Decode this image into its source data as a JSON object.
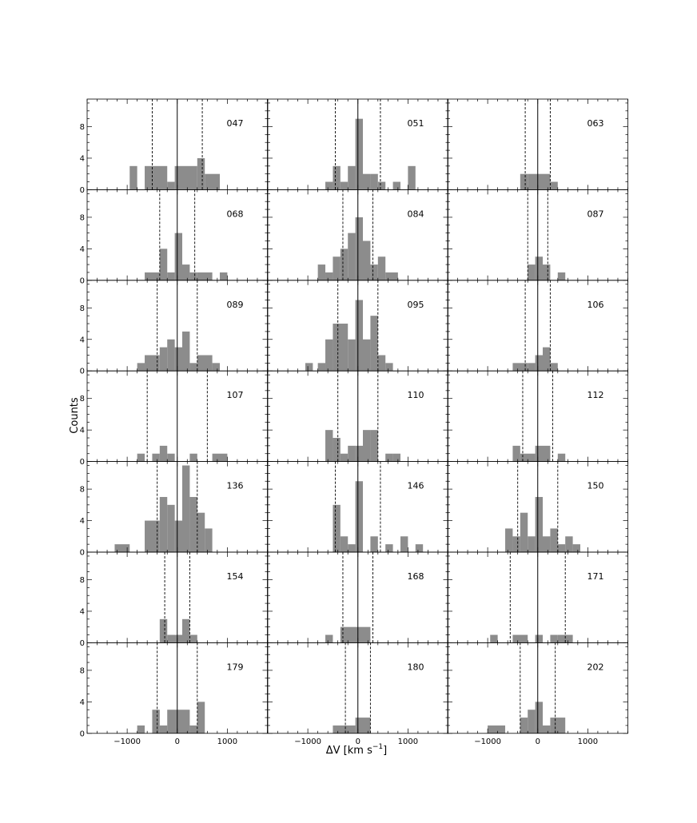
{
  "figure": {
    "xlabel": "ΔV [km s",
    "xlabel_sup": "−1",
    "xlabel_close": "]",
    "ylabel": "Counts"
  },
  "chart_data": {
    "type": "histogram-grid",
    "xlim": [
      -1800,
      1800
    ],
    "ylim": [
      0,
      11.5
    ],
    "x_ticks_labeled": [
      -1000,
      0,
      1000
    ],
    "x_tick_labels": [
      "−1000",
      "0",
      "1000"
    ],
    "y_ticks_labeled": [
      0,
      4,
      8
    ],
    "y_tick_labels": [
      "0",
      "4",
      "8"
    ],
    "bar_color": "#8c8c8c",
    "panels": [
      {
        "label": "047",
        "bins": [
          [
            -950,
            -800,
            3
          ],
          [
            -650,
            -200,
            3
          ],
          [
            -200,
            -50,
            1
          ],
          [
            -50,
            400,
            3
          ],
          [
            400,
            550,
            4
          ],
          [
            550,
            850,
            2
          ]
        ],
        "center_line": {
          "x": 0,
          "style": "solid"
        },
        "dashed": [
          -500,
          500
        ]
      },
      {
        "label": "051",
        "bins": [
          [
            -650,
            -500,
            1
          ],
          [
            -500,
            -350,
            3
          ],
          [
            -350,
            -200,
            1
          ],
          [
            -200,
            -50,
            3
          ],
          [
            -50,
            100,
            9
          ],
          [
            100,
            250,
            2
          ],
          [
            250,
            400,
            2
          ],
          [
            400,
            550,
            1
          ],
          [
            700,
            850,
            1
          ],
          [
            1000,
            1150,
            3
          ]
        ],
        "center_line": {
          "x": 0,
          "style": "solid"
        },
        "dashed": [
          -450,
          450
        ]
      },
      {
        "label": "063",
        "bins": [
          [
            -350,
            -200,
            2
          ],
          [
            -200,
            250,
            2
          ],
          [
            250,
            400,
            1
          ]
        ],
        "center_line": {
          "x": 0,
          "style": "solid"
        },
        "dashed": [
          -250,
          250
        ]
      },
      {
        "label": "068",
        "bins": [
          [
            -650,
            -350,
            1
          ],
          [
            -350,
            -200,
            4
          ],
          [
            -200,
            -50,
            1
          ],
          [
            -50,
            100,
            6
          ],
          [
            100,
            250,
            2
          ],
          [
            250,
            400,
            1
          ],
          [
            400,
            700,
            1
          ],
          [
            850,
            1000,
            1
          ]
        ],
        "center_line": {
          "x": 0,
          "style": "solid"
        },
        "dashed": [
          -350,
          350
        ]
      },
      {
        "label": "084",
        "bins": [
          [
            -800,
            -650,
            2
          ],
          [
            -650,
            -500,
            1
          ],
          [
            -500,
            -350,
            3
          ],
          [
            -350,
            -200,
            4
          ],
          [
            -200,
            -50,
            6
          ],
          [
            -50,
            100,
            8
          ],
          [
            100,
            250,
            5
          ],
          [
            250,
            400,
            2
          ],
          [
            400,
            550,
            3
          ],
          [
            550,
            800,
            1
          ]
        ],
        "center_line": {
          "x": 0,
          "style": "solid"
        },
        "dashed": [
          -300,
          300
        ]
      },
      {
        "label": "087",
        "bins": [
          [
            -200,
            -50,
            2
          ],
          [
            -50,
            100,
            3
          ],
          [
            100,
            250,
            2
          ],
          [
            400,
            550,
            1
          ]
        ],
        "center_line": {
          "x": 0,
          "style": "solid"
        },
        "dashed": [
          -200,
          200
        ]
      },
      {
        "label": "089",
        "bins": [
          [
            -800,
            -650,
            1
          ],
          [
            -650,
            -350,
            2
          ],
          [
            -350,
            -200,
            3
          ],
          [
            -200,
            -50,
            4
          ],
          [
            -50,
            100,
            3
          ],
          [
            100,
            250,
            5
          ],
          [
            250,
            400,
            1
          ],
          [
            400,
            700,
            2
          ],
          [
            700,
            850,
            1
          ]
        ],
        "center_line": {
          "x": 0,
          "style": "solid"
        },
        "dashed": [
          -400,
          400
        ]
      },
      {
        "label": "095",
        "bins": [
          [
            -1050,
            -900,
            1
          ],
          [
            -800,
            -650,
            1
          ],
          [
            -650,
            -500,
            4
          ],
          [
            -500,
            -200,
            6
          ],
          [
            -200,
            -50,
            4
          ],
          [
            -50,
            100,
            9
          ],
          [
            100,
            250,
            4
          ],
          [
            250,
            400,
            7
          ],
          [
            400,
            550,
            2
          ],
          [
            550,
            700,
            1
          ]
        ],
        "center_line": {
          "x": 0,
          "style": "solid"
        },
        "dashed": [
          -400,
          400
        ]
      },
      {
        "label": "106",
        "bins": [
          [
            -500,
            -200,
            1
          ],
          [
            -200,
            -50,
            1
          ],
          [
            -50,
            100,
            2
          ],
          [
            100,
            250,
            3
          ],
          [
            250,
            400,
            1
          ]
        ],
        "center_line": {
          "x": 0,
          "style": "solid"
        },
        "dashed": [
          -250,
          250
        ]
      },
      {
        "label": "107",
        "bins": [
          [
            -800,
            -650,
            1
          ],
          [
            -500,
            -350,
            1
          ],
          [
            -350,
            -200,
            2
          ],
          [
            -200,
            -50,
            1
          ],
          [
            250,
            400,
            1
          ],
          [
            700,
            1000,
            1
          ]
        ],
        "center_line": {
          "x": 0,
          "style": "solid"
        },
        "dashed": [
          -600,
          600
        ]
      },
      {
        "label": "110",
        "bins": [
          [
            -650,
            -500,
            4
          ],
          [
            -500,
            -350,
            3
          ],
          [
            -350,
            -200,
            1
          ],
          [
            -200,
            -50,
            2
          ],
          [
            -50,
            100,
            2
          ],
          [
            100,
            250,
            4
          ],
          [
            250,
            400,
            4
          ],
          [
            550,
            700,
            1
          ],
          [
            700,
            850,
            1
          ]
        ],
        "center_line": {
          "x": 0,
          "style": "solid"
        },
        "dashed": [
          -400,
          400
        ]
      },
      {
        "label": "112",
        "bins": [
          [
            -500,
            -350,
            2
          ],
          [
            -350,
            -50,
            1
          ],
          [
            -50,
            250,
            2
          ],
          [
            400,
            550,
            1
          ]
        ],
        "center_line": {
          "x": 0,
          "style": "solid"
        },
        "dashed": [
          -300,
          300
        ]
      },
      {
        "label": "136",
        "bins": [
          [
            -1250,
            -950,
            1
          ],
          [
            -650,
            -350,
            4
          ],
          [
            -350,
            -200,
            7
          ],
          [
            -200,
            -50,
            6
          ],
          [
            -50,
            100,
            4
          ],
          [
            100,
            250,
            11
          ],
          [
            250,
            400,
            7
          ],
          [
            400,
            550,
            5
          ],
          [
            550,
            700,
            3
          ]
        ],
        "center_line": {
          "x": 0,
          "style": "solid"
        },
        "dashed": [
          -400,
          400
        ]
      },
      {
        "label": "146",
        "bins": [
          [
            -500,
            -350,
            6
          ],
          [
            -350,
            -200,
            2
          ],
          [
            -200,
            -50,
            1
          ],
          [
            -50,
            100,
            9
          ],
          [
            250,
            400,
            2
          ],
          [
            550,
            700,
            1
          ],
          [
            850,
            1000,
            2
          ],
          [
            1150,
            1300,
            1
          ]
        ],
        "center_line": {
          "x": 0,
          "style": "solid"
        },
        "dashed": [
          -450,
          450
        ]
      },
      {
        "label": "150",
        "bins": [
          [
            -650,
            -500,
            3
          ],
          [
            -500,
            -350,
            2
          ],
          [
            -350,
            -200,
            5
          ],
          [
            -200,
            -50,
            2
          ],
          [
            -50,
            100,
            7
          ],
          [
            100,
            250,
            2
          ],
          [
            250,
            400,
            3
          ],
          [
            400,
            550,
            1
          ],
          [
            550,
            700,
            2
          ],
          [
            700,
            850,
            1
          ]
        ],
        "center_line": {
          "x": 0,
          "style": "solid"
        },
        "dashed": [
          -400,
          400
        ]
      },
      {
        "label": "154",
        "bins": [
          [
            -350,
            -200,
            3
          ],
          [
            -200,
            100,
            1
          ],
          [
            100,
            250,
            3
          ],
          [
            250,
            400,
            1
          ]
        ],
        "center_line": {
          "x": 0,
          "style": "solid"
        },
        "dashed": [
          -250,
          250
        ]
      },
      {
        "label": "168",
        "bins": [
          [
            -650,
            -500,
            1
          ],
          [
            -350,
            250,
            2
          ]
        ],
        "center_line": {
          "x": 0,
          "style": "solid"
        },
        "dashed": [
          -300,
          300
        ]
      },
      {
        "label": "171",
        "bins": [
          [
            -950,
            -800,
            1
          ],
          [
            -500,
            -200,
            1
          ],
          [
            -50,
            100,
            1
          ],
          [
            250,
            400,
            1
          ],
          [
            400,
            700,
            1
          ]
        ],
        "center_line": {
          "x": 0,
          "style": "solid"
        },
        "dashed": [
          -550,
          550
        ]
      },
      {
        "label": "179",
        "bins": [
          [
            -800,
            -650,
            1
          ],
          [
            -500,
            -350,
            3
          ],
          [
            -350,
            -200,
            1
          ],
          [
            -200,
            250,
            3
          ],
          [
            250,
            400,
            1
          ],
          [
            400,
            550,
            4
          ]
        ],
        "center_line": {
          "x": 0,
          "style": "solid"
        },
        "dashed": [
          -400,
          400
        ]
      },
      {
        "label": "180",
        "bins": [
          [
            -500,
            -50,
            1
          ],
          [
            -50,
            250,
            2
          ]
        ],
        "center_line": {
          "x": 0,
          "style": "solid"
        },
        "dashed": [
          -250,
          250
        ]
      },
      {
        "label": "202",
        "bins": [
          [
            -1000,
            -650,
            1
          ],
          [
            -350,
            -200,
            2
          ],
          [
            -200,
            -50,
            3
          ],
          [
            -50,
            100,
            4
          ],
          [
            100,
            250,
            1
          ],
          [
            250,
            550,
            2
          ]
        ],
        "center_line": {
          "x": 0,
          "style": "solid"
        },
        "dashed": [
          -350,
          350
        ]
      }
    ]
  }
}
